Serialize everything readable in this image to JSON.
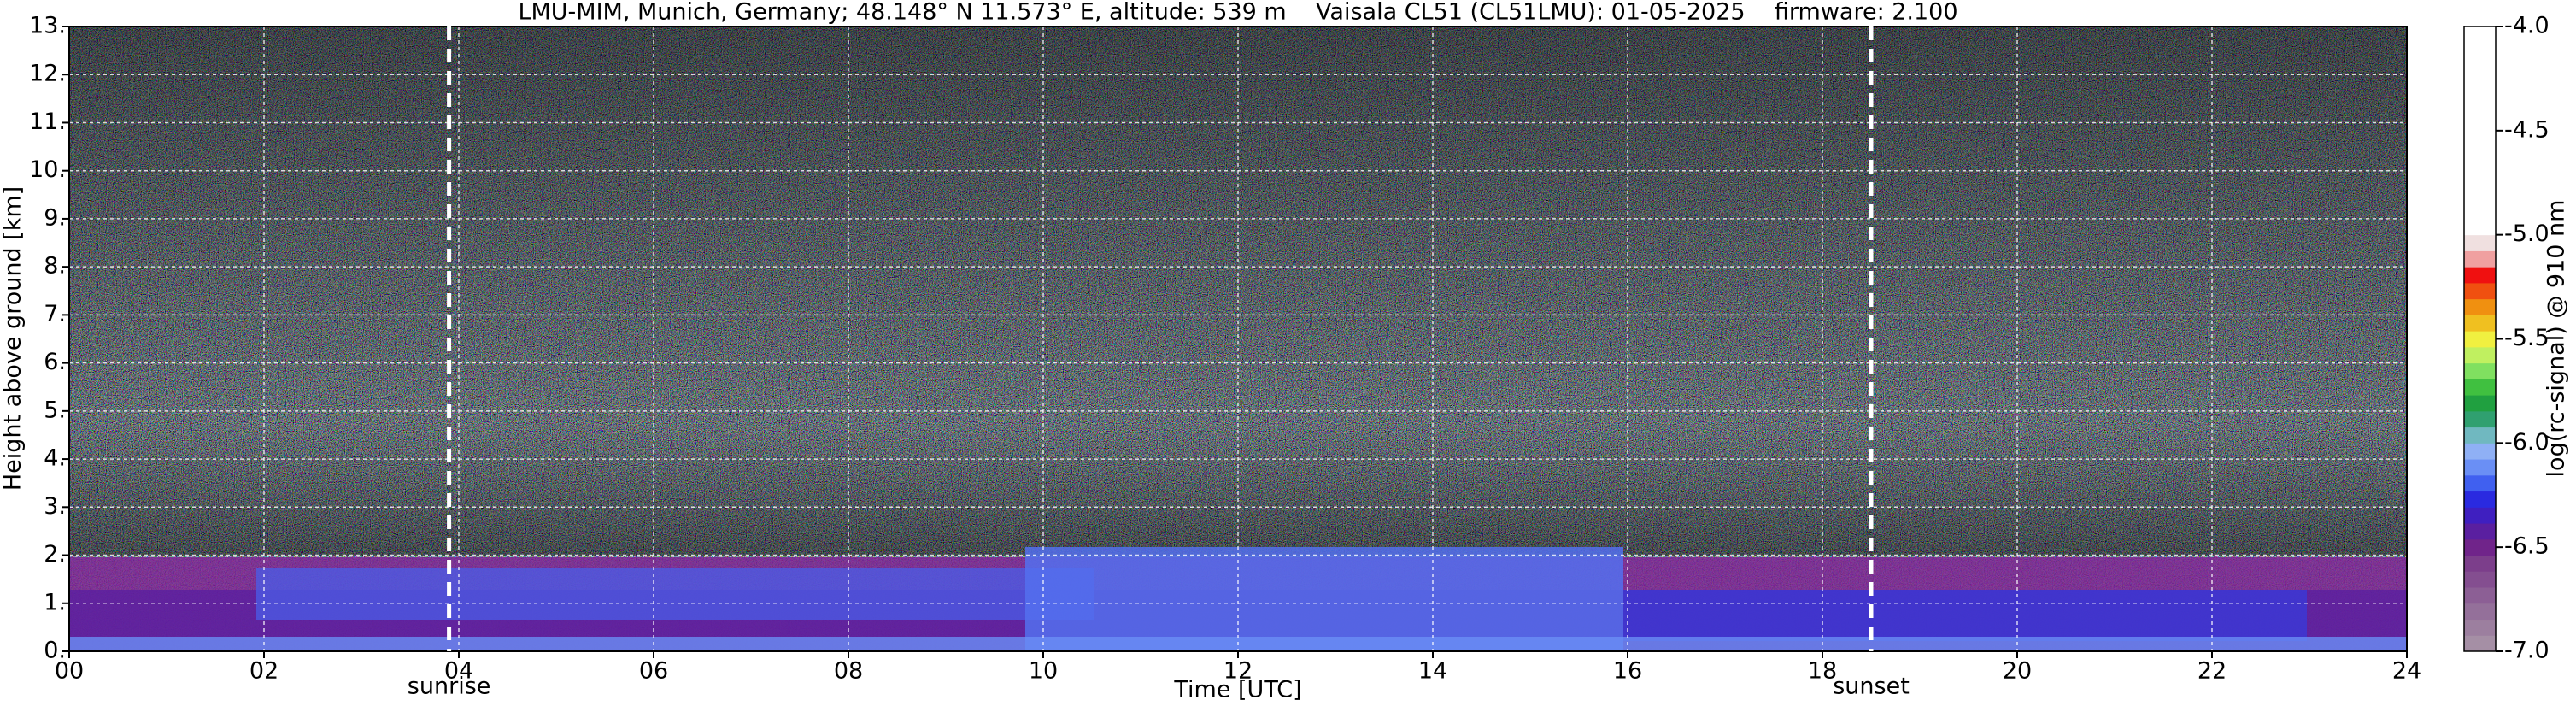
{
  "chart_data": {
    "type": "heatmap",
    "title": "LMU-MIM, Munich, Germany; 48.148° N 11.573° E, altitude: 539 m    Vaisala CL51 (CL51LMU): 01-05-2025    firmware: 2.100",
    "xlabel": "Time [UTC]",
    "ylabel": "Height above ground [km]",
    "xlim": [
      0,
      24
    ],
    "ylim": [
      0,
      13
    ],
    "xticks": [
      {
        "value": 0,
        "label": "00"
      },
      {
        "value": 2,
        "label": "02"
      },
      {
        "value": 4,
        "label": "04"
      },
      {
        "value": 6,
        "label": "06"
      },
      {
        "value": 8,
        "label": "08"
      },
      10,
      12,
      14,
      16,
      18,
      20,
      22,
      24
    ],
    "yticks": [
      {
        "value": 0,
        "label": "0."
      },
      {
        "value": 1,
        "label": "1."
      },
      {
        "value": 2,
        "label": "2."
      },
      {
        "value": 3,
        "label": "3."
      },
      {
        "value": 4,
        "label": "4."
      },
      {
        "value": 5,
        "label": "5."
      },
      {
        "value": 6,
        "label": "6."
      },
      {
        "value": 7,
        "label": "7."
      },
      {
        "value": 8,
        "label": "8."
      },
      {
        "value": 9,
        "label": "9."
      },
      {
        "value": 10,
        "label": "10."
      },
      {
        "value": 11,
        "label": "11."
      },
      {
        "value": 12,
        "label": "12."
      },
      {
        "value": 13,
        "label": "13."
      }
    ],
    "grid": true,
    "annotations": [
      {
        "text": "sunrise",
        "x": 3.9
      },
      {
        "text": "sunset",
        "x": 18.5
      }
    ],
    "colorbar": {
      "label": "log(rc-signal) @ 910 nm",
      "lim": [
        -7,
        -4
      ],
      "ticks": [
        {
          "value": -4,
          "label": "-4.0"
        },
        -4.5,
        {
          "value": -5,
          "label": "-5.0"
        },
        -5.5,
        {
          "value": -6,
          "label": "-6.0"
        },
        -6.5,
        {
          "value": -7,
          "label": "-7.0"
        }
      ],
      "colors": [
        "#a58fa5",
        "#9c7f9f",
        "#94709a",
        "#8c5f95",
        "#844e90",
        "#7c3e8b",
        "#70248a",
        "#5a1fa0",
        "#3f1fc0",
        "#2a2ae0",
        "#4060f0",
        "#6a8ff5",
        "#8fb0f5",
        "#70b8c0",
        "#30a070",
        "#20a040",
        "#40c040",
        "#80e060",
        "#c0f060",
        "#f0f040",
        "#f0c020",
        "#f09010",
        "#f05010",
        "#f01010",
        "#f0a0a0",
        "#f0e0e0",
        "#ffffff"
      ]
    }
  }
}
